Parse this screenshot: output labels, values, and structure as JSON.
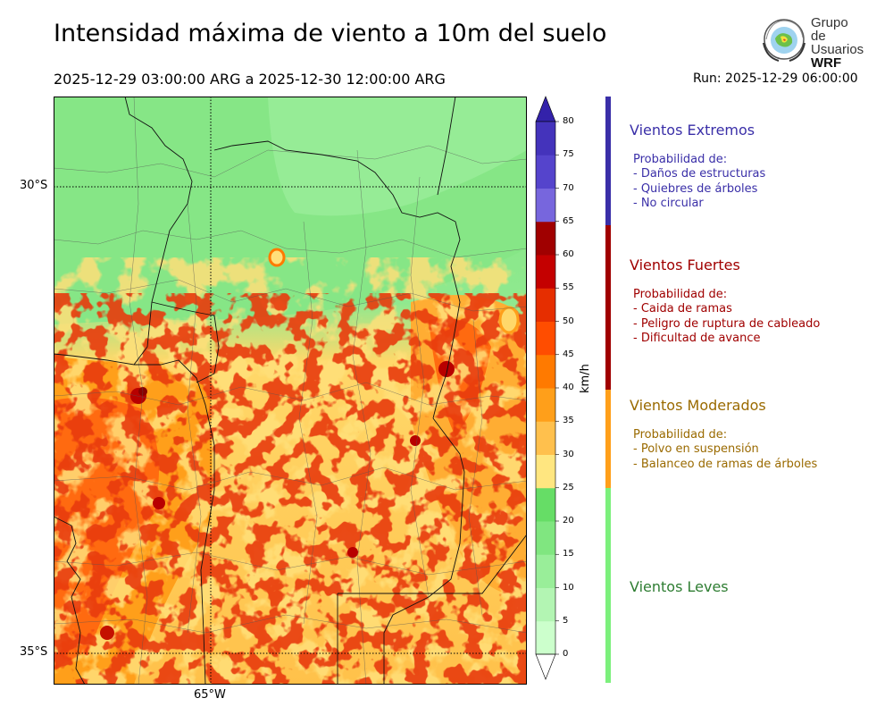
{
  "title": "Intensidad máxima de viento a 10m del suelo",
  "period": "2025-12-29 03:00:00 ARG  a  2025-12-30 12:00:00 ARG",
  "run": "Run: 2025-12-29 06:00:00",
  "logo": {
    "line1": "Grupo de",
    "line2": "Usuarios",
    "line3": "WRF"
  },
  "map": {
    "lat_labels": [
      "30°S",
      "35°S"
    ],
    "lon_labels": [
      "65°W"
    ]
  },
  "colorbar": {
    "unit": "km/h",
    "ticks": [
      "0",
      "5",
      "10",
      "15",
      "20",
      "25",
      "30",
      "35",
      "40",
      "45",
      "50",
      "55",
      "60",
      "65",
      "70",
      "75",
      "80"
    ],
    "colors": [
      "#e6ffe6",
      "#ccffcc",
      "#b3f5b3",
      "#99ee99",
      "#80e680",
      "#66dd66",
      "#ffe680",
      "#ffc04d",
      "#ff9f1a",
      "#ff7a00",
      "#ff4d00",
      "#e62e00",
      "#c40000",
      "#a00000",
      "#7766dd",
      "#5544cc",
      "#4433bb",
      "#3322aa"
    ]
  },
  "categories": [
    {
      "title": "Vientos Extremos",
      "color": "#3a2fa8",
      "bar": "#3a2fa8",
      "lines": [
        "Probabilidad de:",
        "- Daños de estructuras",
        "- Quiebres de árboles",
        "- No circular"
      ]
    },
    {
      "title": "Vientos Fuertes",
      "color": "#a00000",
      "bar": "#a00000",
      "lines": [
        "Probabilidad de:",
        "- Caida de ramas",
        "- Peligro de ruptura de cableado",
        "- Dificultad de avance"
      ]
    },
    {
      "title": "Vientos Moderados",
      "color": "#9a6a00",
      "bar": "#ff9f1a",
      "lines": [
        "Probabilidad de:",
        "- Polvo en suspensión",
        "- Balanceo de ramas de árboles"
      ]
    },
    {
      "title": "Vientos Leves",
      "color": "#2e7d32",
      "bar": "#7cf07c",
      "lines": []
    }
  ]
}
